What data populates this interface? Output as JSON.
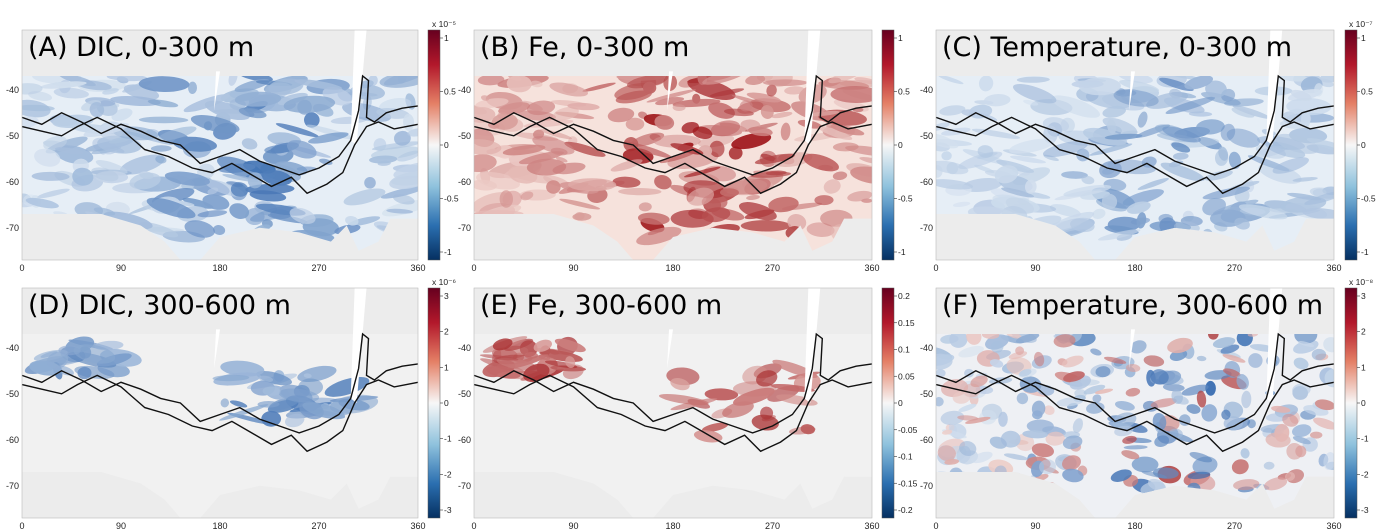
{
  "chart_data": [
    {
      "type": "heatmap",
      "title": "(A) DIC, 0-300 m",
      "xticks": [
        "0",
        "90",
        "180",
        "270",
        "360"
      ],
      "yticks": [
        "-40",
        "-50",
        "-60",
        "-70"
      ],
      "colorbar": {
        "ticks": [
          "1",
          "0.5",
          "0",
          "-0.5",
          "-1"
        ],
        "exponent": "x 10⁻⁵",
        "range": [
          -1.3,
          1.3
        ]
      },
      "palette": "blue",
      "intensity": 0.55
    },
    {
      "type": "heatmap",
      "title": "(B) Fe, 0-300 m",
      "xticks": [
        "0",
        "90",
        "180",
        "270",
        "360"
      ],
      "yticks": [
        "-40",
        "-50",
        "-60",
        "-70"
      ],
      "colorbar": {
        "ticks": [
          "1",
          "0.5",
          "0",
          "-0.5",
          "-1"
        ],
        "exponent": "",
        "range": [
          -1,
          1
        ]
      },
      "palette": "red",
      "intensity": 0.75
    },
    {
      "type": "heatmap",
      "title": "(C) Temperature, 0-300 m",
      "xticks": [
        "0",
        "90",
        "180",
        "270",
        "360"
      ],
      "yticks": [
        "-40",
        "-50",
        "-60",
        "-70"
      ],
      "colorbar": {
        "ticks": [
          "1",
          "0.5",
          "0",
          "-0.5",
          "-1"
        ],
        "exponent": "x 10⁻⁷",
        "range": [
          -1,
          1
        ]
      },
      "palette": "blue",
      "intensity": 0.35
    },
    {
      "type": "heatmap",
      "title": "(D) DIC, 300-600 m",
      "xticks": [
        "0",
        "90",
        "180",
        "270",
        "360"
      ],
      "yticks": [
        "-40",
        "-50",
        "-60",
        "-70"
      ],
      "colorbar": {
        "ticks": [
          "3",
          "2",
          "1",
          "0",
          "-1",
          "-2",
          "-3"
        ],
        "exponent": "x 10⁻⁶",
        "range": [
          -3,
          3
        ]
      },
      "palette": "blue-sparse",
      "intensity": 0.5
    },
    {
      "type": "heatmap",
      "title": "(E) Fe, 300-600 m",
      "xticks": [
        "0",
        "90",
        "180",
        "270",
        "360"
      ],
      "yticks": [
        "-40",
        "-50",
        "-60",
        "-70"
      ],
      "colorbar": {
        "ticks": [
          "0.2",
          "0.15",
          "0.1",
          "0.05",
          "0",
          "-0.05",
          "-0.1",
          "-0.15",
          "-0.2"
        ],
        "exponent": "",
        "range": [
          -0.2,
          0.2
        ]
      },
      "palette": "red-sparse",
      "intensity": 0.6
    },
    {
      "type": "heatmap",
      "title": "(F) Temperature, 300-600 m",
      "xticks": [
        "0",
        "90",
        "180",
        "270",
        "360"
      ],
      "yticks": [
        "-40",
        "-50",
        "-60",
        "-70"
      ],
      "colorbar": {
        "ticks": [
          "3",
          "2",
          "1",
          "0",
          "-1",
          "-2",
          "-3"
        ],
        "exponent": "x 10⁻⁸",
        "range": [
          -3,
          3
        ]
      },
      "palette": "mixed",
      "intensity": 0.6
    }
  ],
  "colors": {
    "land": "#ececec",
    "front_line": "#111111",
    "blue_strong": "#1f5f9f",
    "red_strong": "#a8121f"
  }
}
